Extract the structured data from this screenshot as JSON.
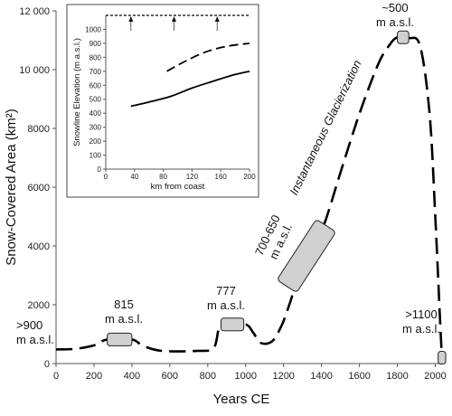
{
  "chart_data": [
    {
      "type": "line",
      "xlabel": "Years CE",
      "ylabel": "Snow-Covered Area (km²)",
      "xlim": [
        0,
        2050
      ],
      "ylim": [
        0,
        12000
      ],
      "x_ticks": [
        "0",
        "200",
        "400",
        "600",
        "800",
        "1000",
        "1200",
        "1400",
        "1600",
        "1800",
        "2000"
      ],
      "y_ticks": [
        "0",
        "2000",
        "4000",
        "6000",
        "8000",
        "10 000",
        "12 000"
      ],
      "series": [
        {
          "style": "dashed",
          "color": "#000000",
          "points": [
            [
              0,
              480
            ],
            [
              100,
              500
            ],
            [
              200,
              620
            ],
            [
              270,
              820
            ],
            [
              400,
              820
            ],
            [
              460,
              600
            ],
            [
              560,
              430
            ],
            [
              740,
              430
            ],
            [
              830,
              520
            ],
            [
              860,
              1200
            ],
            [
              900,
              1330
            ],
            [
              1000,
              1330
            ],
            [
              1040,
              1050
            ],
            [
              1080,
              700
            ],
            [
              1140,
              760
            ],
            [
              1190,
              1300
            ],
            [
              1230,
              2000
            ],
            [
              1280,
              2950
            ],
            [
              1370,
              4200
            ],
            [
              1420,
              4850
            ],
            [
              1500,
              6500
            ],
            [
              1600,
              8500
            ],
            [
              1700,
              10200
            ],
            [
              1760,
              10850
            ],
            [
              1800,
              11100
            ],
            [
              1860,
              11080
            ],
            [
              1920,
              10800
            ],
            [
              1970,
              8500
            ],
            [
              2000,
              5000
            ],
            [
              2025,
              1500
            ],
            [
              2035,
              200
            ]
          ]
        }
      ],
      "annotations": [
        {
          "text": ">900\nm a.s.l.",
          "box": null
        },
        {
          "text": "815\nm a.s.l.",
          "box": {
            "x_range": [
              270,
              400
            ],
            "y": 820
          }
        },
        {
          "text": "777\nm a.s.l.",
          "box": {
            "x_range": [
              870,
              990
            ],
            "y": 1330
          }
        },
        {
          "text": "700-650\nm a.s.l.",
          "box": {
            "x_range": [
              1270,
              1420
            ],
            "y_range": [
              2950,
              4500
            ],
            "rotated": true
          }
        },
        {
          "text": "Instantaneous Glacierization",
          "box": null
        },
        {
          "text": "~500\nm a.s.l.",
          "box": {
            "x_range": [
              1800,
              1860
            ],
            "y": 11100
          }
        },
        {
          "text": ">1100\nm a.s.l.",
          "box": {
            "x_range": [
              2015,
              2055
            ],
            "y": 200
          }
        }
      ]
    },
    {
      "type": "line",
      "inset": true,
      "xlabel": "km from coast",
      "ylabel": "Snowline Elevation (m a.s.l.)",
      "xlim": [
        0,
        200
      ],
      "ylim": [
        0,
        1100
      ],
      "x_ticks": [
        "0",
        "40",
        "80",
        "120",
        "160",
        "200"
      ],
      "y_ticks": [
        "0",
        "100",
        "200",
        "300",
        "400",
        "500",
        "600",
        "700",
        "800",
        "900",
        "1000"
      ],
      "series": [
        {
          "style": "solid",
          "color": "#000000",
          "x": [
            35,
            60,
            90,
            120,
            150,
            175,
            200
          ],
          "y": [
            450,
            480,
            520,
            580,
            630,
            670,
            700
          ]
        },
        {
          "style": "dashed",
          "color": "#000000",
          "x": [
            85,
            110,
            140,
            170,
            200
          ],
          "y": [
            700,
            770,
            840,
            880,
            900
          ]
        },
        {
          "style": "dotted",
          "color": "#000000",
          "x": [
            0,
            200
          ],
          "y": [
            1100,
            1100
          ]
        }
      ],
      "arrow_markers_x": [
        35,
        95,
        155
      ]
    }
  ]
}
